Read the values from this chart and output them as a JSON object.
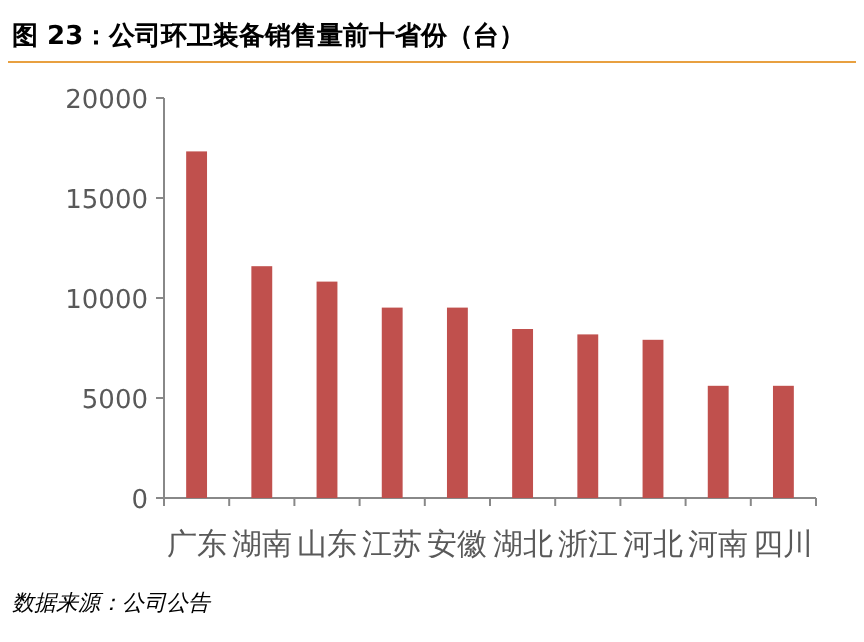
{
  "chart_data": {
    "type": "bar",
    "title": "图 23：公司环卫装备销售量前十省份（台）",
    "annotations": [
      "数据来源：公司公告"
    ],
    "categories": [
      "广东",
      "湖南",
      "山东",
      "江苏",
      "安徽",
      "湖北",
      "浙江",
      "河北",
      "河南",
      "四川"
    ],
    "values": [
      17330,
      11590,
      10820,
      9520,
      9520,
      8450,
      8180,
      7910,
      5610,
      5610
    ],
    "color": "#c0504d",
    "ylim": [
      0,
      20000
    ],
    "yticks": [
      0,
      5000,
      10000,
      15000,
      20000
    ]
  }
}
